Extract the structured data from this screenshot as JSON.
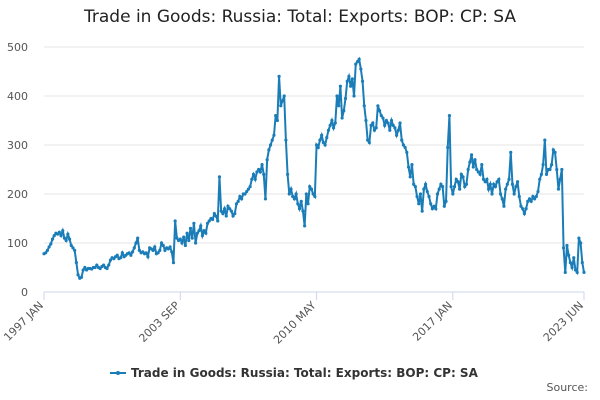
{
  "chart_data": {
    "type": "line",
    "title": "Trade in Goods: Russia: Total: Exports: BOP: CP: SA",
    "source": "Source:",
    "x": [
      "1997-01",
      "1997-02",
      "1997-03",
      "1997-04",
      "1997-05",
      "1997-06",
      "1997-07",
      "1997-08",
      "1997-09",
      "1997-10",
      "1997-11",
      "1997-12",
      "1998-01",
      "1998-02",
      "1998-03",
      "1998-04",
      "1998-05",
      "1998-06",
      "1998-07",
      "1998-08",
      "1998-09",
      "1998-10",
      "1998-11",
      "1998-12",
      "1999-01",
      "1999-02",
      "1999-03",
      "1999-04",
      "1999-05",
      "1999-06",
      "1999-07",
      "1999-08",
      "1999-09",
      "1999-10",
      "1999-11",
      "1999-12",
      "2000-01",
      "2000-02",
      "2000-03",
      "2000-04",
      "2000-05",
      "2000-06",
      "2000-07",
      "2000-08",
      "2000-09",
      "2000-10",
      "2000-11",
      "2000-12",
      "2001-01",
      "2001-02",
      "2001-03",
      "2001-04",
      "2001-05",
      "2001-06",
      "2001-07",
      "2001-08",
      "2001-09",
      "2001-10",
      "2001-11",
      "2001-12",
      "2002-01",
      "2002-02",
      "2002-03",
      "2002-04",
      "2002-05",
      "2002-06",
      "2002-07",
      "2002-08",
      "2002-09",
      "2002-10",
      "2002-11",
      "2002-12",
      "2003-01",
      "2003-02",
      "2003-03",
      "2003-04",
      "2003-05",
      "2003-06",
      "2003-07",
      "2003-08",
      "2003-09",
      "2003-10",
      "2003-11",
      "2003-12",
      "2004-01",
      "2004-02",
      "2004-03",
      "2004-04",
      "2004-05",
      "2004-06",
      "2004-07",
      "2004-08",
      "2004-09",
      "2004-10",
      "2004-11",
      "2004-12",
      "2005-01",
      "2005-02",
      "2005-03",
      "2005-04",
      "2005-05",
      "2005-06",
      "2005-07",
      "2005-08",
      "2005-09",
      "2005-10",
      "2005-11",
      "2005-12",
      "2006-01",
      "2006-02",
      "2006-03",
      "2006-04",
      "2006-05",
      "2006-06",
      "2006-07",
      "2006-08",
      "2006-09",
      "2006-10",
      "2006-11",
      "2006-12",
      "2007-01",
      "2007-02",
      "2007-03",
      "2007-04",
      "2007-05",
      "2007-06",
      "2007-07",
      "2007-08",
      "2007-09",
      "2007-10",
      "2007-11",
      "2007-12",
      "2008-01",
      "2008-02",
      "2008-03",
      "2008-04",
      "2008-05",
      "2008-06",
      "2008-07",
      "2008-08",
      "2008-09",
      "2008-10",
      "2008-11",
      "2008-12",
      "2009-01",
      "2009-02",
      "2009-03",
      "2009-04",
      "2009-05",
      "2009-06",
      "2009-07",
      "2009-08",
      "2009-09",
      "2009-10",
      "2009-11",
      "2009-12",
      "2010-01",
      "2010-02",
      "2010-03",
      "2010-04",
      "2010-05",
      "2010-06",
      "2010-07",
      "2010-08",
      "2010-09",
      "2010-10",
      "2010-11",
      "2010-12",
      "2011-01",
      "2011-02",
      "2011-03",
      "2011-04",
      "2011-05",
      "2011-06",
      "2011-07",
      "2011-08",
      "2011-09",
      "2011-10",
      "2011-11",
      "2011-12",
      "2012-01",
      "2012-02",
      "2012-03",
      "2012-04",
      "2012-05",
      "2012-06",
      "2012-07",
      "2012-08",
      "2012-09",
      "2012-10",
      "2012-11",
      "2012-12",
      "2013-01",
      "2013-02",
      "2013-03",
      "2013-04",
      "2013-05",
      "2013-06",
      "2013-07",
      "2013-08",
      "2013-09",
      "2013-10",
      "2013-11",
      "2013-12",
      "2014-01",
      "2014-02",
      "2014-03",
      "2014-04",
      "2014-05",
      "2014-06",
      "2014-07",
      "2014-08",
      "2014-09",
      "2014-10",
      "2014-11",
      "2014-12",
      "2015-01",
      "2015-02",
      "2015-03",
      "2015-04",
      "2015-05",
      "2015-06",
      "2015-07",
      "2015-08",
      "2015-09",
      "2015-10",
      "2015-11",
      "2015-12",
      "2016-01",
      "2016-02",
      "2016-03",
      "2016-04",
      "2016-05",
      "2016-06",
      "2016-07",
      "2016-08",
      "2016-09",
      "2016-10",
      "2016-11",
      "2016-12",
      "2017-01",
      "2017-02",
      "2017-03",
      "2017-04",
      "2017-05",
      "2017-06",
      "2017-07",
      "2017-08",
      "2017-09",
      "2017-10",
      "2017-11",
      "2017-12",
      "2018-01",
      "2018-02",
      "2018-03",
      "2018-04",
      "2018-05",
      "2018-06",
      "2018-07",
      "2018-08",
      "2018-09",
      "2018-10",
      "2018-11",
      "2018-12",
      "2019-01",
      "2019-02",
      "2019-03",
      "2019-04",
      "2019-05",
      "2019-06",
      "2019-07",
      "2019-08",
      "2019-09",
      "2019-10",
      "2019-11",
      "2019-12",
      "2020-01",
      "2020-02",
      "2020-03",
      "2020-04",
      "2020-05",
      "2020-06",
      "2020-07",
      "2020-08",
      "2020-09",
      "2020-10",
      "2020-11",
      "2020-12",
      "2021-01",
      "2021-02",
      "2021-03",
      "2021-04",
      "2021-05",
      "2021-06",
      "2021-07",
      "2021-08",
      "2021-09",
      "2021-10",
      "2021-11",
      "2021-12",
      "2022-01",
      "2022-02",
      "2022-03",
      "2022-04",
      "2022-05",
      "2022-06",
      "2022-07",
      "2022-08",
      "2022-09",
      "2022-10",
      "2022-11",
      "2022-12",
      "2023-01",
      "2023-02",
      "2023-03",
      "2023-04",
      "2023-05",
      "2023-06"
    ],
    "series": [
      {
        "name": "Trade in Goods: Russia: Total: Exports: BOP: CP: SA",
        "color": "#1a7db8",
        "values": [
          78,
          80,
          85,
          92,
          98,
          108,
          115,
          120,
          118,
          122,
          115,
          125,
          110,
          105,
          118,
          108,
          95,
          90,
          85,
          60,
          35,
          28,
          30,
          45,
          50,
          45,
          48,
          48,
          47,
          50,
          50,
          55,
          50,
          48,
          52,
          55,
          50,
          48,
          55,
          65,
          70,
          68,
          72,
          75,
          68,
          70,
          80,
          72,
          75,
          78,
          80,
          75,
          82,
          90,
          100,
          110,
          85,
          80,
          82,
          78,
          80,
          72,
          90,
          88,
          85,
          92,
          78,
          80,
          85,
          100,
          95,
          85,
          90,
          88,
          92,
          82,
          60,
          145,
          110,
          105,
          108,
          100,
          112,
          95,
          120,
          105,
          130,
          110,
          140,
          100,
          120,
          125,
          135,
          115,
          125,
          120,
          140,
          145,
          150,
          148,
          160,
          155,
          145,
          235,
          165,
          160,
          170,
          155,
          175,
          170,
          165,
          155,
          160,
          180,
          185,
          195,
          190,
          200,
          200,
          205,
          210,
          215,
          230,
          240,
          230,
          245,
          250,
          245,
          260,
          240,
          190,
          270,
          290,
          300,
          310,
          320,
          360,
          350,
          440,
          380,
          390,
          400,
          310,
          240,
          200,
          210,
          195,
          190,
          200,
          180,
          170,
          185,
          165,
          135,
          200,
          180,
          215,
          210,
          200,
          195,
          300,
          295,
          310,
          320,
          305,
          300,
          315,
          330,
          340,
          350,
          335,
          345,
          400,
          380,
          420,
          355,
          370,
          395,
          430,
          440,
          420,
          435,
          400,
          465,
          470,
          475,
          455,
          430,
          380,
          350,
          310,
          305,
          340,
          345,
          330,
          335,
          380,
          370,
          360,
          355,
          340,
          350,
          345,
          330,
          350,
          340,
          335,
          320,
          330,
          345,
          310,
          300,
          295,
          285,
          255,
          235,
          260,
          220,
          215,
          195,
          180,
          200,
          165,
          210,
          220,
          205,
          195,
          180,
          170,
          175,
          170,
          200,
          210,
          220,
          215,
          175,
          185,
          295,
          360,
          215,
          200,
          215,
          230,
          225,
          210,
          240,
          235,
          215,
          220,
          250,
          265,
          280,
          255,
          270,
          250,
          245,
          240,
          260,
          230,
          225,
          230,
          210,
          220,
          200,
          220,
          215,
          225,
          230,
          200,
          190,
          175,
          210,
          220,
          230,
          285,
          220,
          200,
          215,
          225,
          195,
          175,
          170,
          160,
          170,
          185,
          190,
          185,
          195,
          190,
          195,
          205,
          230,
          240,
          260,
          310,
          240,
          250,
          250,
          260,
          290,
          285,
          250,
          210,
          230,
          250,
          90,
          40,
          95,
          75,
          60,
          50,
          70,
          45,
          40,
          110,
          100,
          60,
          40
        ]
      }
    ],
    "ylim": [
      0,
      500
    ],
    "yticks": [
      0,
      100,
      200,
      300,
      400,
      500
    ],
    "grid": true,
    "xticks": [
      {
        "value": "1997-01",
        "label": "1997 JAN"
      },
      {
        "value": "2003-09",
        "label": "2003 SEP"
      },
      {
        "value": "2010-05",
        "label": "2010 MAY"
      },
      {
        "value": "2017-01",
        "label": "2017 JAN"
      },
      {
        "value": "2023-06",
        "label": "2023 JUN"
      }
    ],
    "legend": "bottom"
  }
}
